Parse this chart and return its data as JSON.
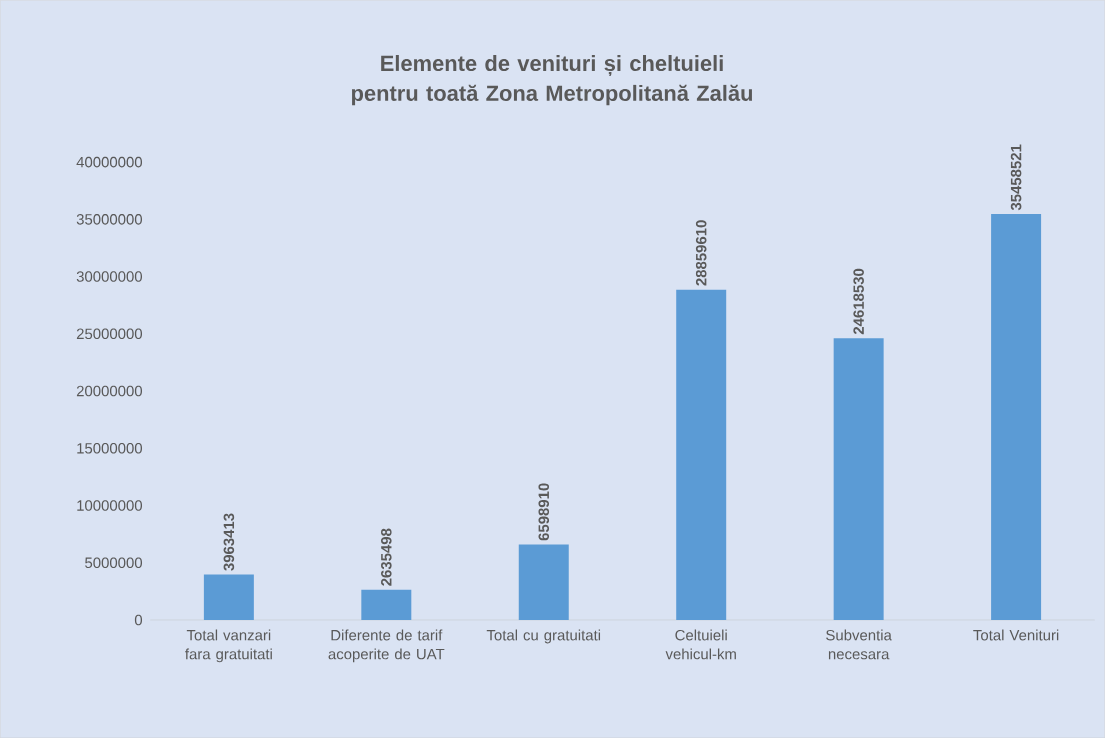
{
  "chart_data": {
    "type": "bar",
    "title": "Elemente de venituri și cheltuieli pentru toată Zona Metropolitană Zalău",
    "categories": [
      "Total vanzari fara gratuitati",
      "Diferente de tarif acoperite de UAT",
      "Total cu gratuitati",
      "Celtuieli vehicul-km",
      "Subventia necesara",
      "Total Venituri"
    ],
    "values": [
      3963413,
      2635498,
      6598910,
      28859610,
      24618530,
      35458521
    ],
    "color": "#5b9bd5",
    "ylim": [
      0,
      40000000
    ],
    "yticks": [
      0,
      5000000,
      10000000,
      15000000,
      20000000,
      25000000,
      30000000,
      35000000,
      40000000
    ],
    "grid": false,
    "data_labels": true
  }
}
